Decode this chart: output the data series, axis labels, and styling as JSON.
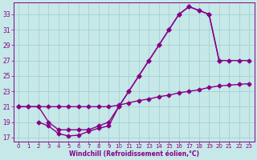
{
  "xlabel": "Windchill (Refroidissement éolien,°C)",
  "ylabel": "",
  "bg_color": "#c6e8e8",
  "grid_color": "#a0cccc",
  "line_color": "#880088",
  "xlim": [
    -0.5,
    23.5
  ],
  "ylim": [
    16.5,
    34.5
  ],
  "yticks": [
    17,
    19,
    21,
    23,
    25,
    27,
    29,
    31,
    33
  ],
  "xticks": [
    0,
    1,
    2,
    3,
    4,
    5,
    6,
    7,
    8,
    9,
    10,
    11,
    12,
    13,
    14,
    15,
    16,
    17,
    18,
    19,
    20,
    21,
    22,
    23
  ],
  "series1_x": [
    0,
    1,
    2,
    3,
    4,
    5,
    6,
    7,
    8,
    9,
    10,
    11,
    12,
    13,
    14,
    15,
    16,
    17,
    18,
    19,
    20,
    21,
    22,
    23
  ],
  "series1_y": [
    21.0,
    21.0,
    21.0,
    21.0,
    21.0,
    21.0,
    21.0,
    21.0,
    21.0,
    21.0,
    21.2,
    21.5,
    21.8,
    22.0,
    22.3,
    22.5,
    22.8,
    23.0,
    23.2,
    23.5,
    23.7,
    23.8,
    23.9,
    24.0
  ],
  "series2_x": [
    0,
    1,
    2,
    3,
    4,
    5,
    6,
    7,
    8,
    9,
    10,
    11,
    12,
    13,
    14,
    15,
    16,
    17,
    18,
    19,
    20
  ],
  "series2_y": [
    21.0,
    21.0,
    21.0,
    19.0,
    18.0,
    18.0,
    18.0,
    18.0,
    18.5,
    19.0,
    21.0,
    23.0,
    25.0,
    27.0,
    29.0,
    31.0,
    33.0,
    34.0,
    33.5,
    33.0,
    27.0
  ],
  "series3_x": [
    2,
    3,
    4,
    5,
    6,
    7,
    8,
    9,
    10,
    11,
    12,
    13,
    14,
    15,
    16,
    17,
    18,
    19,
    20,
    21,
    22,
    23
  ],
  "series3_y": [
    19.0,
    18.5,
    17.5,
    17.2,
    17.3,
    17.8,
    18.2,
    18.5,
    21.0,
    23.0,
    25.0,
    27.0,
    29.0,
    31.0,
    33.0,
    34.0,
    33.5,
    33.0,
    27.0,
    27.0,
    27.0,
    27.0
  ],
  "marker_size": 2.5,
  "line_width": 1.0
}
